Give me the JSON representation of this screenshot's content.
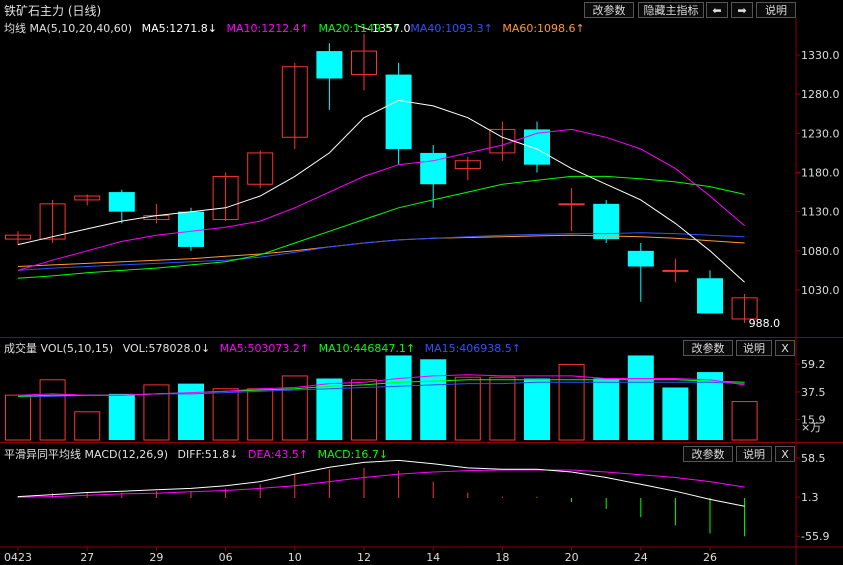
{
  "header": {
    "title": "铁矿石主力 (日线)",
    "buttons": {
      "change_params": "改参数",
      "hide_indicator": "隐藏主指标",
      "prev": "⬅",
      "next": "➡",
      "help": "说明"
    }
  },
  "price_panel": {
    "legend": {
      "name": "均线 MA(5,10,20,40,60)",
      "ma5": "MA5:1271.8↓",
      "ma10": "MA10:1212.4↑",
      "ma20": "MA20:1149.5↑",
      "ma40": "MA40:1093.3↑",
      "ma60": "MA60:1098.6↑"
    },
    "high_label": "1357.0",
    "low_label": "988.0"
  },
  "volume_panel": {
    "legend": {
      "name": "成交量 VOL(5,10,15)",
      "vol": "VOL:578028.0↓",
      "ma5": "MA5:503073.2↑",
      "ma10": "MA10:446847.1↑",
      "ma15": "MA15:406938.5↑"
    },
    "buttons": {
      "change_params": "改参数",
      "help": "说明",
      "close": "X"
    },
    "unit": "×万"
  },
  "macd_panel": {
    "legend": {
      "name": "平滑异同平均线 MACD(12,26,9)",
      "diff": "DIFF:51.8↓",
      "dea": "DEA:43.5↑",
      "macd": "MACD:16.7↓"
    },
    "buttons": {
      "change_params": "改参数",
      "help": "说明",
      "close": "X"
    }
  },
  "colors": {
    "up": "#ff3232",
    "down": "#00ffff",
    "ma5": "#ffffff",
    "ma10": "#ff00ff",
    "ma20": "#00ff00",
    "ma40": "#3050ff",
    "ma60": "#ff9933",
    "axis": "#8b0000",
    "separator": "#8b0000"
  },
  "chart_data": [
    {
      "type": "candlestick",
      "x_ticks": [
        "0423",
        "27",
        "29",
        "06",
        "10",
        "12",
        "14",
        "18",
        "20",
        "24",
        "26"
      ],
      "ylim": [
        988,
        1357
      ],
      "y_ticks": [
        "1330.0",
        "1280.0",
        "1230.0",
        "1180.0",
        "1130.0",
        "1080.0",
        "1030.0"
      ],
      "candles": [
        {
          "o": 1095,
          "h": 1105,
          "l": 1088,
          "c": 1100
        },
        {
          "o": 1095,
          "h": 1145,
          "l": 1090,
          "c": 1140
        },
        {
          "o": 1145,
          "h": 1152,
          "l": 1138,
          "c": 1150
        },
        {
          "o": 1155,
          "h": 1158,
          "l": 1115,
          "c": 1130
        },
        {
          "o": 1120,
          "h": 1140,
          "l": 1115,
          "c": 1125
        },
        {
          "o": 1130,
          "h": 1135,
          "l": 1080,
          "c": 1085
        },
        {
          "o": 1120,
          "h": 1180,
          "l": 1118,
          "c": 1175
        },
        {
          "o": 1165,
          "h": 1208,
          "l": 1160,
          "c": 1205
        },
        {
          "o": 1225,
          "h": 1320,
          "l": 1210,
          "c": 1315
        },
        {
          "o": 1335,
          "h": 1345,
          "l": 1260,
          "c": 1300
        },
        {
          "o": 1305,
          "h": 1357,
          "l": 1285,
          "c": 1335
        },
        {
          "o": 1305,
          "h": 1320,
          "l": 1190,
          "c": 1210
        },
        {
          "o": 1205,
          "h": 1215,
          "l": 1135,
          "c": 1165
        },
        {
          "o": 1185,
          "h": 1200,
          "l": 1170,
          "c": 1195
        },
        {
          "o": 1205,
          "h": 1245,
          "l": 1195,
          "c": 1235
        },
        {
          "o": 1235,
          "h": 1245,
          "l": 1180,
          "c": 1190
        },
        {
          "o": 1140,
          "h": 1160,
          "l": 1105,
          "c": 1140
        },
        {
          "o": 1140,
          "h": 1145,
          "l": 1090,
          "c": 1095
        },
        {
          "o": 1080,
          "h": 1090,
          "l": 1015,
          "c": 1060
        },
        {
          "o": 1055,
          "h": 1070,
          "l": 1040,
          "c": 1055
        },
        {
          "o": 1045,
          "h": 1055,
          "l": 1000,
          "c": 1000
        },
        {
          "o": 993,
          "h": 1025,
          "l": 988,
          "c": 1020
        }
      ],
      "ma5": [
        1088,
        1098,
        1108,
        1118,
        1125,
        1130,
        1135,
        1150,
        1175,
        1205,
        1250,
        1272,
        1265,
        1250,
        1225,
        1210,
        1185,
        1165,
        1145,
        1115,
        1080,
        1040
      ],
      "ma10": [
        1055,
        1068,
        1080,
        1092,
        1100,
        1105,
        1110,
        1118,
        1135,
        1155,
        1175,
        1190,
        1195,
        1205,
        1215,
        1230,
        1235,
        1225,
        1210,
        1185,
        1150,
        1112
      ],
      "ma20": [
        1045,
        1048,
        1052,
        1055,
        1058,
        1062,
        1066,
        1075,
        1090,
        1105,
        1120,
        1135,
        1145,
        1155,
        1165,
        1170,
        1175,
        1175,
        1172,
        1168,
        1162,
        1152
      ],
      "ma40": [
        1055,
        1058,
        1060,
        1062,
        1064,
        1066,
        1068,
        1072,
        1078,
        1085,
        1090,
        1094,
        1096,
        1098,
        1100,
        1101,
        1102,
        1102,
        1103,
        1102,
        1100,
        1098
      ],
      "ma60": [
        1060,
        1062,
        1064,
        1066,
        1068,
        1070,
        1073,
        1076,
        1080,
        1085,
        1090,
        1094,
        1096,
        1097,
        1098,
        1099,
        1100,
        1099,
        1098,
        1096,
        1093,
        1090
      ]
    },
    {
      "type": "bar",
      "ylim": [
        0,
        64
      ],
      "y_ticks": [
        "59.2",
        "37.5",
        "15.9"
      ],
      "values": [
        35,
        47,
        22,
        36,
        43,
        44,
        40,
        40,
        50,
        48,
        47,
        66,
        63,
        49,
        49,
        48,
        59,
        48,
        66,
        41,
        53,
        30
      ],
      "up": [
        true,
        true,
        true,
        false,
        true,
        false,
        true,
        true,
        true,
        false,
        true,
        false,
        false,
        true,
        true,
        false,
        true,
        false,
        false,
        false,
        false,
        true
      ],
      "ma5": [
        35,
        36,
        35,
        35,
        36,
        37,
        38,
        40,
        41,
        44,
        45,
        48,
        50,
        51,
        50,
        50,
        50,
        48,
        48,
        48,
        47,
        43
      ],
      "ma10": [
        34,
        35,
        35,
        35,
        36,
        37,
        38,
        39,
        40,
        42,
        43,
        45,
        46,
        47,
        47,
        47,
        47,
        47,
        47,
        47,
        46,
        45
      ],
      "ma15": [
        34,
        34,
        35,
        35,
        36,
        36,
        37,
        38,
        39,
        40,
        41,
        42,
        43,
        44,
        44,
        45,
        45,
        45,
        45,
        45,
        45,
        44
      ]
    },
    {
      "type": "macd",
      "ylim": [
        -62,
        62
      ],
      "y_ticks": [
        "58.5",
        "1.3",
        "-55.9"
      ],
      "diff": [
        2,
        5,
        8,
        10,
        12,
        14,
        18,
        24,
        35,
        45,
        52,
        55,
        50,
        44,
        42,
        42,
        38,
        30,
        20,
        10,
        -2,
        -12
      ],
      "dea": [
        1,
        2,
        4,
        6,
        7,
        9,
        11,
        14,
        18,
        24,
        30,
        35,
        38,
        40,
        41,
        41,
        41,
        38,
        34,
        30,
        24,
        16
      ],
      "hist": [
        3,
        7,
        8,
        8,
        10,
        10,
        14,
        20,
        34,
        42,
        44,
        40,
        24,
        8,
        2,
        2,
        -6,
        -16,
        -28,
        -40,
        -52,
        -56
      ]
    }
  ]
}
